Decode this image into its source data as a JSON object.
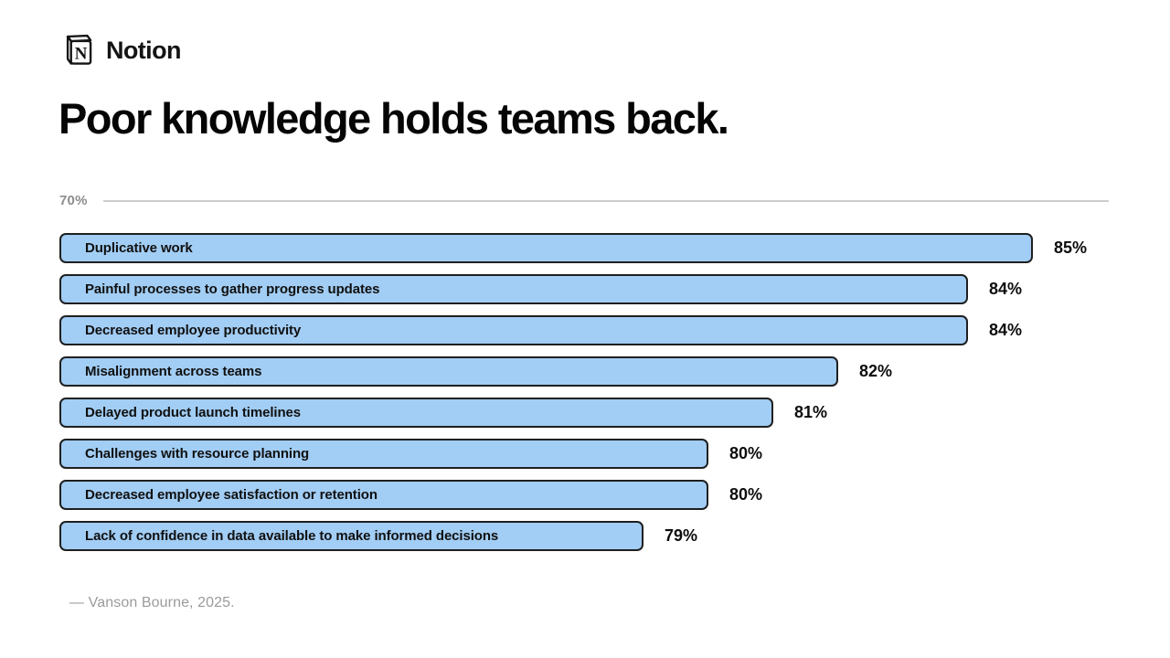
{
  "header": {
    "brand": "Notion",
    "title": "Poor knowledge holds teams back."
  },
  "chart_data": {
    "type": "bar",
    "orientation": "horizontal",
    "title": "Poor knowledge holds teams back.",
    "categories": [
      "Duplicative work",
      "Painful processes to gather progress updates",
      "Decreased employee productivity",
      "Misalignment across teams",
      "Delayed product launch timelines",
      "Challenges with resource planning",
      "Decreased employee satisfaction or retention",
      "Lack of confidence in data available to make informed decisions"
    ],
    "values": [
      85,
      84,
      84,
      82,
      81,
      80,
      80,
      79
    ],
    "value_suffix": "%",
    "xlim": [
      70,
      86
    ],
    "axis_tick_label": "70%",
    "grid": false,
    "legend": false,
    "colors": {
      "bar_fill": "#a2cdf4",
      "bar_border": "#1f1f1f",
      "axis_line": "#cccccc",
      "axis_text": "#8d8d8d",
      "label_text": "#101010"
    }
  },
  "footer": {
    "source": "— Vanson Bourne, 2025."
  }
}
